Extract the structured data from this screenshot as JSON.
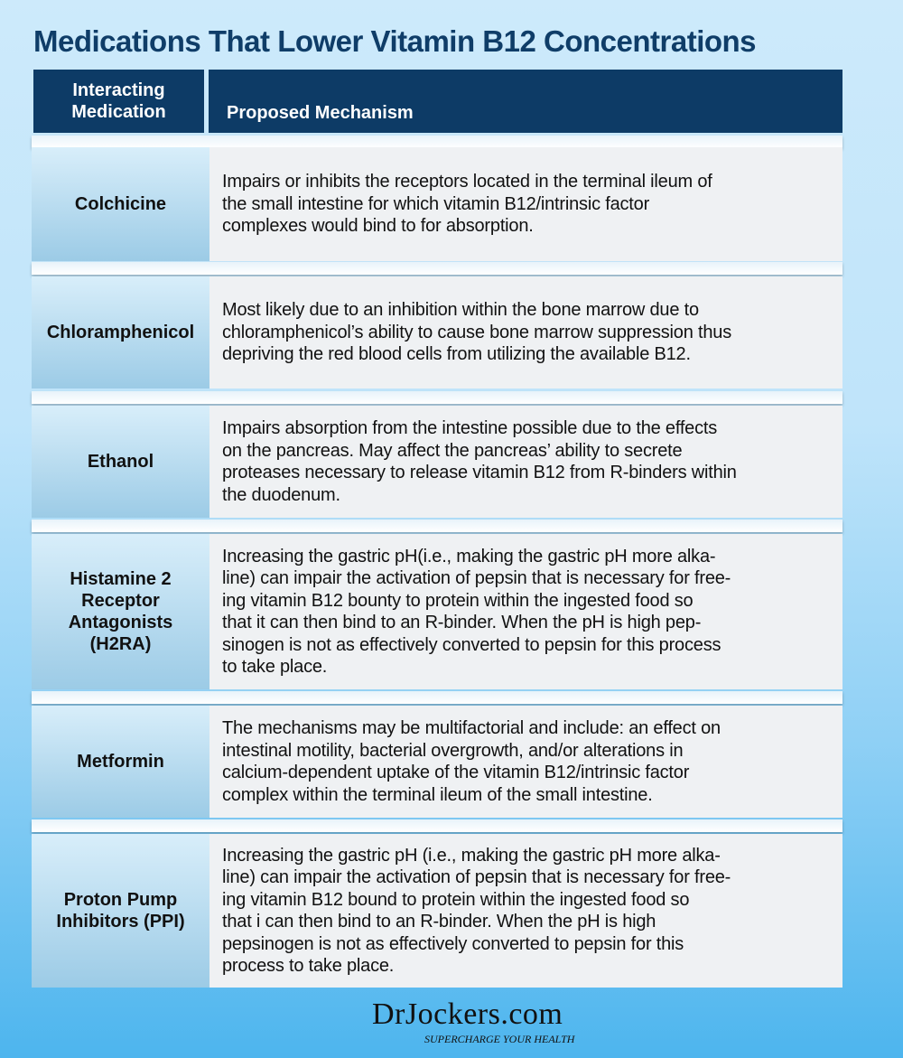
{
  "title": "Medications That Lower Vitamin B12 Concentrations",
  "header": {
    "col1": "Interacting Medication",
    "col2": "Proposed Mechanism"
  },
  "rows": [
    {
      "medication": "Colchicine",
      "mechanism": [
        "Impairs or inhibits the receptors located in the terminal ileum of",
        "the small intestine for which vitamin B12/intrinsic factor",
        "complexes would bind to for absorption."
      ]
    },
    {
      "medication": "Chloramphenicol",
      "mechanism": [
        "Most likely due to an inhibition within the bone marrow due to",
        "chloramphenicol’s ability to cause bone marrow suppression thus",
        "depriving the red blood cells from utilizing the available B12."
      ]
    },
    {
      "medication": "Ethanol",
      "mechanism": [
        "Impairs absorption from the intestine possible due to the effects",
        "on the pancreas. May affect the pancreas’ ability to secrete",
        "proteases necessary to release vitamin B12 from R-binders within",
        "the duodenum."
      ]
    },
    {
      "medication": "Histamine 2 Receptor Antagonists (H2RA)",
      "mechanism": [
        "Increasing the gastric pH(i.e., making the gastric pH more alka-",
        "line) can impair the activation of pepsin that is necessary for free-",
        "ing vitamin B12 bounty to protein within the ingested food so",
        "that it can then bind to an R-binder.  When the pH is high pep-",
        "sinogen is not as effectively converted to pepsin for this process",
        "to take place."
      ]
    },
    {
      "medication": "Metformin",
      "mechanism": [
        "The mechanisms may be multifactorial and include: an effect on",
        "intestinal motility, bacterial overgrowth, and/or alterations in",
        "calcium-dependent uptake of the vitamin B12/intrinsic factor",
        "complex within the terminal ileum of the small intestine."
      ]
    },
    {
      "medication": "Proton Pump Inhibitors (PPI)",
      "mechanism": [
        "Increasing the gastric pH (i.e., making the gastric pH more alka-",
        "line) can impair the activation of pepsin that is necessary for free-",
        "ing vitamin B12 bound to protein within the ingested food so",
        "that i can then bind to an R-binder.  When the pH is high",
        "pepsinogen is not as effectively converted to pepsin for this",
        "process to take place."
      ]
    }
  ],
  "logo": {
    "name": "DrJockers.com",
    "tagline": "SUPERCHARGE YOUR HEALTH"
  },
  "colors": {
    "header": "#0d3b66",
    "title": "#0f3d68"
  }
}
